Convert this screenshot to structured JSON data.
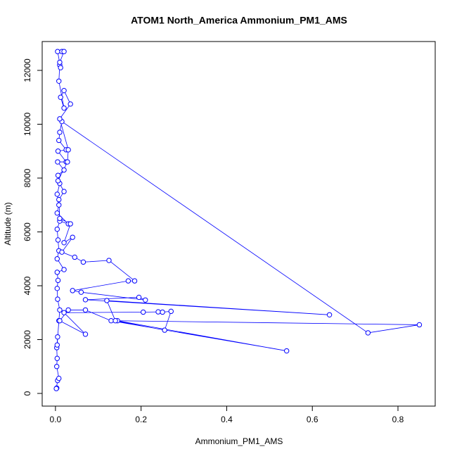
{
  "chart_data": {
    "type": "line",
    "marker": "circle",
    "title": "ATOM1 North_America Ammonium_PM1_AMS",
    "xlabel": "Ammonium_PM1_AMS",
    "ylabel": "Altitude (m)",
    "color": "#0000ff",
    "x": [
      0.003,
      0.002,
      0.005,
      0.008,
      0.003,
      0.004,
      0.003,
      0.005,
      0.004,
      0.008,
      0.01,
      0.005,
      0.004,
      0.006,
      0.004,
      0.02,
      0.004,
      0.008,
      0.006,
      0.004,
      0.01,
      0.03,
      0.004,
      0.008,
      0.004,
      0.01,
      0.006,
      0.02,
      0.005,
      0.025,
      0.006,
      0.025,
      0.008,
      0.01,
      0.015,
      0.73,
      0.85,
      0.145,
      0.54,
      0.13,
      0.07,
      0.03,
      0.01,
      0.07,
      0.02,
      0.205,
      0.24,
      0.25,
      0.27,
      0.255,
      0.14,
      0.12,
      0.64,
      0.07,
      0.195,
      0.21,
      0.06,
      0.04,
      0.17,
      0.185,
      0.125,
      0.065,
      0.045,
      0.015,
      0.04,
      0.02,
      0.035,
      0.01,
      0.008,
      0.02,
      0.006,
      0.028,
      0.03,
      0.01,
      0.035,
      0.02,
      0.012,
      0.02,
      0.008,
      0.01,
      0.012,
      0.005,
      0.015,
      0.02,
      0.01
    ],
    "values": [
      200,
      180,
      480,
      560,
      1000,
      1300,
      1700,
      2100,
      1800,
      2700,
      3100,
      3500,
      3900,
      4200,
      4500,
      4600,
      5000,
      5300,
      5700,
      6100,
      6400,
      6300,
      6700,
      7000,
      7400,
      7800,
      8100,
      8300,
      8600,
      8600,
      9000,
      9050,
      9400,
      9700,
      10100,
      2250,
      2550,
      2700,
      1580,
      2700,
      3100,
      3100,
      2700,
      2200,
      3000,
      3020,
      3030,
      3020,
      3050,
      2350,
      2700,
      3450,
      2920,
      3480,
      3570,
      3470,
      3760,
      3820,
      4180,
      4180,
      4940,
      4880,
      5060,
      5250,
      5800,
      5600,
      6300,
      6500,
      7200,
      7500,
      7900,
      8600,
      9050,
      10200,
      10750,
      11250,
      11000,
      10600,
      11600,
      12200,
      12100,
      12700,
      12700,
      12700,
      12300
    ],
    "xlim": [
      -0.031,
      0.887
    ],
    "ylim": [
      -471,
      13072
    ],
    "xticks": [
      {
        "value": 0,
        "label": "0.0"
      },
      {
        "value": 0.2,
        "label": "0.2"
      },
      {
        "value": 0.4,
        "label": "0.4"
      },
      {
        "value": 0.6,
        "label": "0.6"
      },
      {
        "value": 0.8,
        "label": "0.8"
      }
    ],
    "yticks": [
      0,
      2000,
      4000,
      6000,
      8000,
      10000,
      12000
    ]
  }
}
